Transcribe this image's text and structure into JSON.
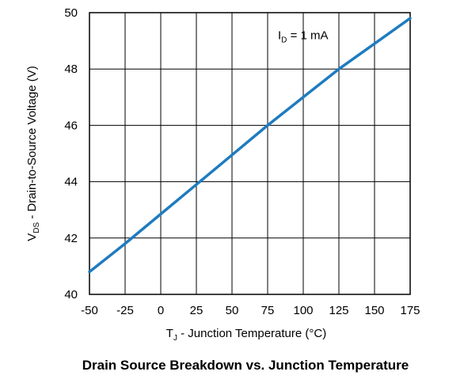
{
  "chart_data": {
    "type": "line",
    "caption": "Drain Source Breakdown vs. Junction Temperature",
    "xlabel": {
      "main": "T",
      "sub": "J",
      "rest": " - Junction Temperature (°C)"
    },
    "ylabel": {
      "main": "V",
      "sub": "DS",
      "rest": " - Drain-to-Source Voltage (V)"
    },
    "xlim": [
      -50,
      175
    ],
    "ylim": [
      40,
      50
    ],
    "xticks": [
      -50,
      -25,
      0,
      25,
      50,
      75,
      100,
      125,
      150,
      175
    ],
    "yticks": [
      40,
      42,
      44,
      46,
      48,
      50
    ],
    "grid": true,
    "annotation": {
      "main": "I",
      "sub": "D",
      "rest": " = 1 mA",
      "x": 125,
      "y": 49.2
    },
    "series": [
      {
        "color": "#1f7bbf",
        "x": [
          -50,
          -25,
          0,
          25,
          50,
          75,
          100,
          125,
          150,
          175
        ],
        "y": [
          40.8,
          41.8,
          42.85,
          43.9,
          44.95,
          46.0,
          47.0,
          48.0,
          48.9,
          49.8
        ]
      }
    ]
  }
}
